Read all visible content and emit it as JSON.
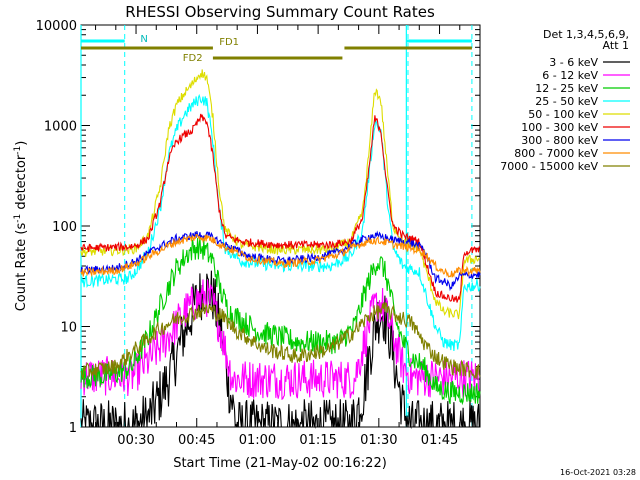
{
  "chart_data": {
    "type": "line",
    "title": "RHESSI Observing Summary Count Rates",
    "xlabel": "Start Time (21-May-02 00:16:22)",
    "ylabel_main": "Count Rate (s",
    "ylabel_sup1": "-1",
    "ylabel_mid": " detector",
    "ylabel_sup2": "-1",
    "ylabel_end": ")",
    "y_scale": "log",
    "ylim": [
      1,
      10000
    ],
    "xlim_minutes": [
      16.4,
      115
    ],
    "x_ticks": [
      {
        "label": "00:30",
        "minutes": 30
      },
      {
        "label": "00:45",
        "minutes": 45
      },
      {
        "label": "01:00",
        "minutes": 60
      },
      {
        "label": "01:15",
        "minutes": 75
      },
      {
        "label": "01:30",
        "minutes": 90
      },
      {
        "label": "01:45",
        "minutes": 105
      }
    ],
    "y_ticks": [
      {
        "label": "1",
        "value": 1
      },
      {
        "label": "10",
        "value": 10
      },
      {
        "label": "100",
        "value": 100
      },
      {
        "label": "1000",
        "value": 1000
      },
      {
        "label": "10000",
        "value": 10000
      }
    ],
    "legend_header": [
      "Det 1,3,4,5,6,9,",
      "Att 1"
    ],
    "legend_position": "right-outside",
    "series": [
      {
        "name": "3 - 6 keV",
        "color": "#000000",
        "noise": 0.28,
        "points": [
          [
            16.4,
            1.0
          ],
          [
            29,
            1.0
          ],
          [
            33,
            1.2
          ],
          [
            38,
            3
          ],
          [
            42,
            9
          ],
          [
            45,
            18
          ],
          [
            47,
            25
          ],
          [
            49,
            20
          ],
          [
            51,
            9
          ],
          [
            53,
            2.5
          ],
          [
            55,
            1.0
          ],
          [
            83,
            1.0
          ],
          [
            86,
            2
          ],
          [
            88,
            6
          ],
          [
            89.5,
            12
          ],
          [
            91,
            14
          ],
          [
            92.5,
            9
          ],
          [
            94,
            4
          ],
          [
            96,
            1.5
          ],
          [
            98,
            1.0
          ],
          [
            115,
            1.0
          ]
        ]
      },
      {
        "name": "6 - 12 keV",
        "color": "#ff00ff",
        "noise": 0.2,
        "points": [
          [
            16.4,
            3.2
          ],
          [
            29,
            3.2
          ],
          [
            33,
            4.5
          ],
          [
            38,
            8
          ],
          [
            42,
            14
          ],
          [
            45,
            18
          ],
          [
            47,
            20
          ],
          [
            49,
            17
          ],
          [
            51,
            9
          ],
          [
            53,
            4
          ],
          [
            54,
            3.0
          ],
          [
            60,
            3.0
          ],
          [
            84,
            3.0
          ],
          [
            86,
            6
          ],
          [
            88,
            12
          ],
          [
            89.5,
            17
          ],
          [
            91,
            16
          ],
          [
            92.5,
            11
          ],
          [
            94,
            7
          ],
          [
            96,
            4
          ],
          [
            98,
            3.1
          ],
          [
            115,
            3.1
          ]
        ]
      },
      {
        "name": "12 - 25 keV",
        "color": "#00cc00",
        "noise": 0.12,
        "points": [
          [
            16.4,
            3.2
          ],
          [
            22,
            3.2
          ],
          [
            25,
            3.4
          ],
          [
            29,
            4
          ],
          [
            33,
            8
          ],
          [
            37,
            20
          ],
          [
            40,
            38
          ],
          [
            43,
            55
          ],
          [
            45,
            62
          ],
          [
            47,
            58
          ],
          [
            49,
            45
          ],
          [
            51,
            22
          ],
          [
            53,
            14
          ],
          [
            60,
            9
          ],
          [
            70,
            7
          ],
          [
            80,
            7
          ],
          [
            84,
            10
          ],
          [
            87,
            25
          ],
          [
            89.5,
            45
          ],
          [
            91,
            40
          ],
          [
            92.5,
            25
          ],
          [
            94,
            12
          ],
          [
            96,
            7
          ],
          [
            98,
            5
          ],
          [
            101,
            4
          ],
          [
            104,
            2.5
          ],
          [
            108,
            2.2
          ],
          [
            115,
            2.2
          ]
        ]
      },
      {
        "name": "25 - 50 keV",
        "color": "#00ffff",
        "noise": 0.06,
        "points": [
          [
            16.4,
            28
          ],
          [
            28,
            30
          ],
          [
            30,
            36
          ],
          [
            33,
            55
          ],
          [
            36,
            150
          ],
          [
            38,
            500
          ],
          [
            40,
            900
          ],
          [
            42,
            1300
          ],
          [
            44,
            1600
          ],
          [
            46,
            1900
          ],
          [
            47.5,
            1700
          ],
          [
            49,
            700
          ],
          [
            50.5,
            150
          ],
          [
            52,
            60
          ],
          [
            56,
            45
          ],
          [
            65,
            40
          ],
          [
            78,
            40
          ],
          [
            83,
            50
          ],
          [
            86,
            90
          ],
          [
            87.5,
            300
          ],
          [
            89,
            1100
          ],
          [
            90.5,
            900
          ],
          [
            92,
            200
          ],
          [
            93.5,
            60
          ],
          [
            96,
            40
          ],
          [
            100,
            35
          ],
          [
            104,
            10
          ],
          [
            106,
            7
          ],
          [
            108,
            6.5
          ],
          [
            110,
            6.5
          ],
          [
            111,
            25
          ],
          [
            115,
            26
          ]
        ]
      },
      {
        "name": "50 - 100 keV",
        "color": "#dddd00",
        "noise": 0.05,
        "points": [
          [
            16.4,
            55
          ],
          [
            28,
            58
          ],
          [
            30,
            60
          ],
          [
            33,
            80
          ],
          [
            36,
            250
          ],
          [
            38,
            900
          ],
          [
            40,
            1600
          ],
          [
            42,
            2100
          ],
          [
            44,
            2600
          ],
          [
            46,
            3400
          ],
          [
            47.5,
            3000
          ],
          [
            49,
            1200
          ],
          [
            50.5,
            250
          ],
          [
            52,
            90
          ],
          [
            56,
            65
          ],
          [
            65,
            58
          ],
          [
            78,
            58
          ],
          [
            83,
            70
          ],
          [
            86,
            140
          ],
          [
            87.5,
            500
          ],
          [
            89,
            2300
          ],
          [
            90.5,
            1800
          ],
          [
            92,
            400
          ],
          [
            93.5,
            100
          ],
          [
            96,
            70
          ],
          [
            100,
            60
          ],
          [
            104,
            18
          ],
          [
            106,
            14
          ],
          [
            110,
            13
          ],
          [
            111,
            45
          ],
          [
            115,
            48
          ]
        ]
      },
      {
        "name": "100 - 300 keV",
        "color": "#ee0000",
        "noise": 0.04,
        "points": [
          [
            16.4,
            60
          ],
          [
            28,
            62
          ],
          [
            30,
            64
          ],
          [
            33,
            75
          ],
          [
            36,
            170
          ],
          [
            38,
            450
          ],
          [
            40,
            700
          ],
          [
            42,
            800
          ],
          [
            44,
            900
          ],
          [
            46,
            1200
          ],
          [
            47.5,
            1100
          ],
          [
            49,
            500
          ],
          [
            50.5,
            150
          ],
          [
            52,
            80
          ],
          [
            56,
            70
          ],
          [
            65,
            65
          ],
          [
            78,
            65
          ],
          [
            83,
            70
          ],
          [
            86,
            120
          ],
          [
            87.5,
            350
          ],
          [
            89,
            1200
          ],
          [
            90.5,
            900
          ],
          [
            92,
            250
          ],
          [
            93.5,
            100
          ],
          [
            96,
            80
          ],
          [
            100,
            70
          ],
          [
            104,
            22
          ],
          [
            106,
            20
          ],
          [
            110,
            18
          ],
          [
            111,
            55
          ],
          [
            115,
            58
          ]
        ]
      },
      {
        "name": "300 - 800 keV",
        "color": "#0000ee",
        "noise": 0.04,
        "points": [
          [
            16.4,
            36
          ],
          [
            25,
            38
          ],
          [
            30,
            45
          ],
          [
            35,
            60
          ],
          [
            40,
            75
          ],
          [
            45,
            82
          ],
          [
            48,
            80
          ],
          [
            52,
            65
          ],
          [
            58,
            50
          ],
          [
            66,
            45
          ],
          [
            74,
            48
          ],
          [
            80,
            55
          ],
          [
            85,
            70
          ],
          [
            88,
            80
          ],
          [
            91,
            78
          ],
          [
            94,
            72
          ],
          [
            98,
            68
          ],
          [
            101,
            60
          ],
          [
            104,
            30
          ],
          [
            106,
            28
          ],
          [
            108,
            25
          ],
          [
            110,
            32
          ],
          [
            115,
            33
          ]
        ]
      },
      {
        "name": "800 - 7000 keV",
        "color": "#ff8c00",
        "noise": 0.04,
        "points": [
          [
            16.4,
            34
          ],
          [
            25,
            36
          ],
          [
            30,
            42
          ],
          [
            35,
            55
          ],
          [
            40,
            70
          ],
          [
            45,
            78
          ],
          [
            48,
            76
          ],
          [
            52,
            62
          ],
          [
            58,
            48
          ],
          [
            66,
            42
          ],
          [
            74,
            45
          ],
          [
            80,
            52
          ],
          [
            85,
            65
          ],
          [
            88,
            72
          ],
          [
            91,
            70
          ],
          [
            94,
            65
          ],
          [
            98,
            60
          ],
          [
            101,
            55
          ],
          [
            104,
            40
          ],
          [
            106,
            35
          ],
          [
            108,
            33
          ],
          [
            110,
            36
          ],
          [
            115,
            36
          ]
        ]
      },
      {
        "name": "7000 - 15000 keV",
        "color": "#808000",
        "noise": 0.08,
        "points": [
          [
            16.4,
            3.5
          ],
          [
            25,
            4
          ],
          [
            30,
            6
          ],
          [
            35,
            9
          ],
          [
            40,
            12
          ],
          [
            45,
            14
          ],
          [
            48,
            15
          ],
          [
            51,
            13
          ],
          [
            55,
            9
          ],
          [
            62,
            6
          ],
          [
            70,
            5
          ],
          [
            78,
            6
          ],
          [
            84,
            9
          ],
          [
            88,
            13
          ],
          [
            91,
            15
          ],
          [
            94,
            13
          ],
          [
            98,
            11
          ],
          [
            101,
            7
          ],
          [
            104,
            5
          ],
          [
            108,
            4
          ],
          [
            115,
            3.5
          ]
        ]
      }
    ],
    "attenuator_bars": {
      "color": "#008080",
      "segments": [
        [
          16.4,
          27.2
        ],
        [
          96.8,
          113
        ]
      ],
      "label": "N",
      "label_minutes": 32,
      "dashed_markers": [
        27.2,
        97.2,
        113
      ]
    },
    "flare_flags": {
      "color": "#808000",
      "top_segments": [
        [
          16.4,
          49
        ],
        [
          81.5,
          113
        ]
      ],
      "top_label": "FD1",
      "top_label_minutes": 53,
      "mid_segments": [
        [
          49,
          81
        ]
      ],
      "mid_label": "FD2",
      "mid_label_minutes": 44
    },
    "cyan_solid_markers": [
      16.4,
      96.8
    ],
    "grid": false
  },
  "footer": {
    "date_stamp": "16-Oct-2021 03:28"
  }
}
